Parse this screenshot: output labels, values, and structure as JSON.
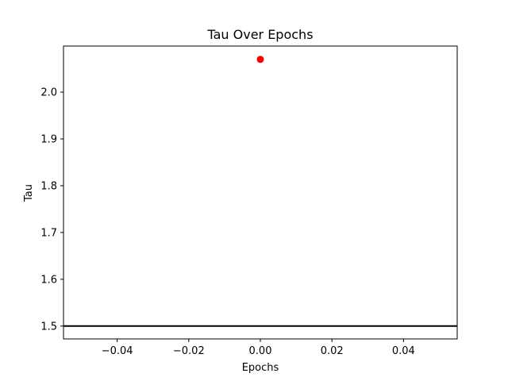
{
  "chart_data": {
    "type": "scatter",
    "title": "Tau Over Epochs",
    "xlabel": "Epochs",
    "ylabel": "Tau",
    "xlim": [
      -0.055,
      0.055
    ],
    "ylim": [
      1.4725,
      2.0985
    ],
    "xticks": [
      -0.04,
      -0.02,
      0.0,
      0.02,
      0.04
    ],
    "xtick_labels": [
      "−0.04",
      "−0.02",
      "0.00",
      "0.02",
      "0.04"
    ],
    "yticks": [
      1.5,
      1.6,
      1.7,
      1.8,
      1.9,
      2.0
    ],
    "ytick_labels": [
      "1.5",
      "1.6",
      "1.7",
      "1.8",
      "1.9",
      "2.0"
    ],
    "series": [
      {
        "x": [
          0.0
        ],
        "y": [
          2.07
        ],
        "color": "#ff0000",
        "marker": "circle"
      }
    ],
    "hlines": [
      {
        "y": 1.5,
        "color": "#000000"
      }
    ],
    "grid": false,
    "legend": false
  }
}
